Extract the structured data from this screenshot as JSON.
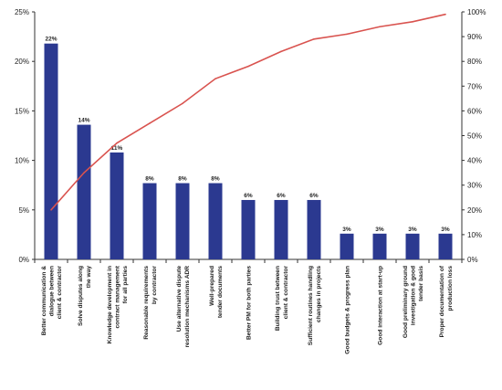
{
  "chart_data": {
    "type": "bar",
    "categories": [
      [
        "Better communication &",
        "dialogue between",
        "client & contractor"
      ],
      [
        "Solve disputes along",
        "the way"
      ],
      [
        "Knowledge development in",
        "contract management",
        "for all parties"
      ],
      [
        "Reasonable requirements",
        "by contractor"
      ],
      [
        "Use alternative dispute",
        "resolution mechanisms ADR"
      ],
      [
        "Well-prepared",
        "tender documents"
      ],
      [
        "Better PM for both parties"
      ],
      [
        "Building trust between",
        "client & contractor"
      ],
      [
        "Sufficient routines handling",
        "changes in projects"
      ],
      [
        "Good budgets & progress plan"
      ],
      [
        "Good interaction at start-up"
      ],
      [
        "Good preliminary ground",
        "investigation & good",
        "tender basis"
      ],
      [
        "Proper documentation of",
        "production loss"
      ]
    ],
    "series": [
      {
        "type": "bar",
        "axis": "left",
        "color": "#2b3990",
        "values": [
          21.8,
          13.6,
          10.8,
          7.7,
          7.7,
          7.7,
          6.0,
          6.0,
          6.0,
          2.6,
          2.6,
          2.6,
          2.6
        ],
        "data_labels": [
          "22%",
          "14%",
          "11%",
          "8%",
          "8%",
          "8%",
          "6%",
          "6%",
          "6%",
          "3%",
          "3%",
          "3%",
          "3%"
        ]
      },
      {
        "type": "line",
        "axis": "right",
        "color": "#d9534f",
        "values": [
          20,
          35,
          47,
          55,
          63,
          73,
          78,
          84,
          89,
          91,
          94,
          96,
          99
        ]
      }
    ],
    "y_left": {
      "min": 0,
      "max": 25,
      "ticks": [
        "0%",
        "5%",
        "10%",
        "15%",
        "20%",
        "25%"
      ]
    },
    "y_right": {
      "min": 0,
      "max": 100,
      "ticks": [
        "0%",
        "10%",
        "20%",
        "30%",
        "40%",
        "50%",
        "60%",
        "70%",
        "80%",
        "90%",
        "100%"
      ]
    },
    "grid": false,
    "legend": "none"
  }
}
